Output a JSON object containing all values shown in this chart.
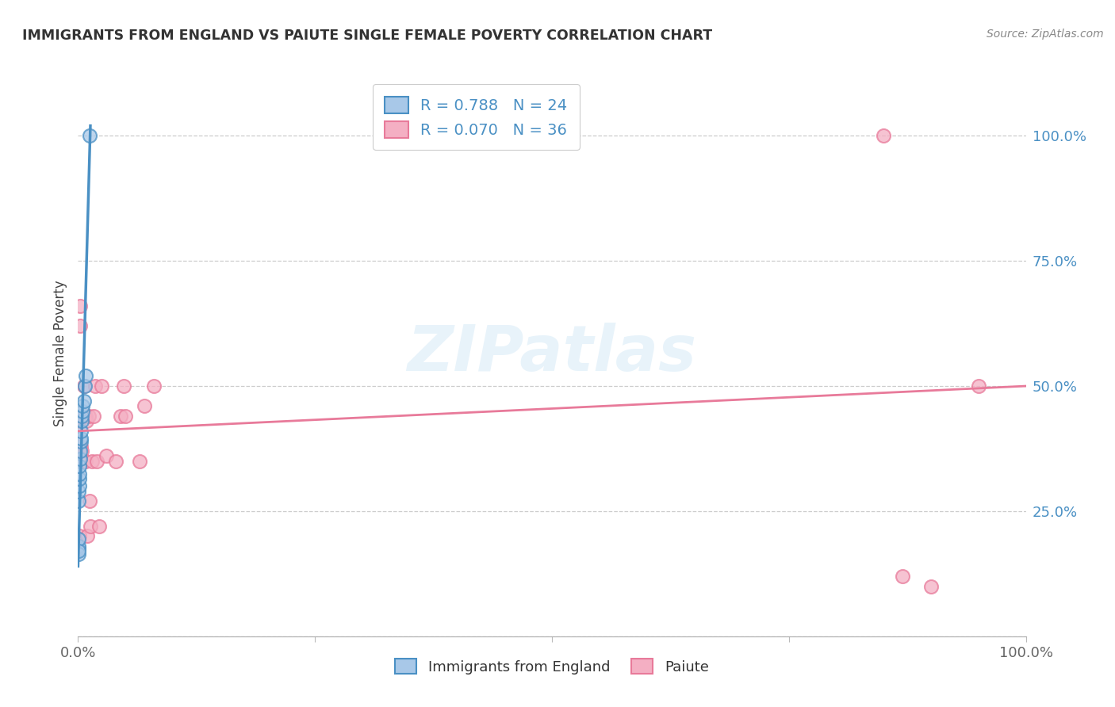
{
  "title": "IMMIGRANTS FROM ENGLAND VS PAIUTE SINGLE FEMALE POVERTY CORRELATION CHART",
  "source": "Source: ZipAtlas.com",
  "ylabel": "Single Female Poverty",
  "legend_label1": "Immigrants from England",
  "legend_label2": "Paiute",
  "R1": 0.788,
  "N1": 24,
  "R2": 0.07,
  "N2": 36,
  "color_blue": "#a8c8e8",
  "color_pink": "#f4afc3",
  "color_blue_line": "#4a90c4",
  "color_pink_line": "#e87a9a",
  "watermark": "ZIPatlas",
  "england_x": [
    0.0002,
    0.0003,
    0.0004,
    0.0008,
    0.0009,
    0.001,
    0.0012,
    0.0013,
    0.0015,
    0.002,
    0.002,
    0.003,
    0.003,
    0.003,
    0.004,
    0.004,
    0.005,
    0.005,
    0.006,
    0.007,
    0.008,
    0.0001,
    0.0002,
    0.012
  ],
  "england_y": [
    0.175,
    0.18,
    0.195,
    0.27,
    0.29,
    0.3,
    0.315,
    0.325,
    0.34,
    0.355,
    0.37,
    0.39,
    0.395,
    0.41,
    0.43,
    0.44,
    0.45,
    0.46,
    0.47,
    0.5,
    0.52,
    0.165,
    0.17,
    1.0
  ],
  "paiute_x": [
    0.0005,
    0.001,
    0.002,
    0.002,
    0.003,
    0.003,
    0.004,
    0.005,
    0.006,
    0.007,
    0.008,
    0.008,
    0.009,
    0.01,
    0.011,
    0.012,
    0.013,
    0.015,
    0.016,
    0.018,
    0.02,
    0.022,
    0.025,
    0.03,
    0.04,
    0.045,
    0.048,
    0.05,
    0.065,
    0.07,
    0.08,
    0.85,
    0.87,
    0.9,
    0.95,
    0.0003
  ],
  "paiute_y": [
    0.43,
    0.2,
    0.62,
    0.66,
    0.38,
    0.44,
    0.37,
    0.44,
    0.5,
    0.44,
    0.35,
    0.44,
    0.43,
    0.2,
    0.44,
    0.27,
    0.22,
    0.35,
    0.44,
    0.5,
    0.35,
    0.22,
    0.5,
    0.36,
    0.35,
    0.44,
    0.5,
    0.44,
    0.35,
    0.46,
    0.5,
    1.0,
    0.12,
    0.1,
    0.5,
    0.43
  ],
  "xlim": [
    0.0,
    1.0
  ],
  "ylim": [
    0.0,
    1.13
  ],
  "yticks": [
    0.0,
    0.25,
    0.5,
    0.75,
    1.0
  ],
  "ytick_labels": [
    "",
    "25.0%",
    "50.0%",
    "75.0%",
    "100.0%"
  ],
  "xticks": [
    0.0,
    0.25,
    0.5,
    0.75,
    1.0
  ],
  "xtick_labels": [
    "0.0%",
    "",
    "",
    "",
    "100.0%"
  ],
  "blue_trend_x": [
    0.0,
    0.013
  ],
  "blue_trend_y": [
    0.14,
    1.02
  ],
  "pink_trend_x": [
    0.0,
    1.0
  ],
  "pink_trend_y": [
    0.41,
    0.5
  ]
}
